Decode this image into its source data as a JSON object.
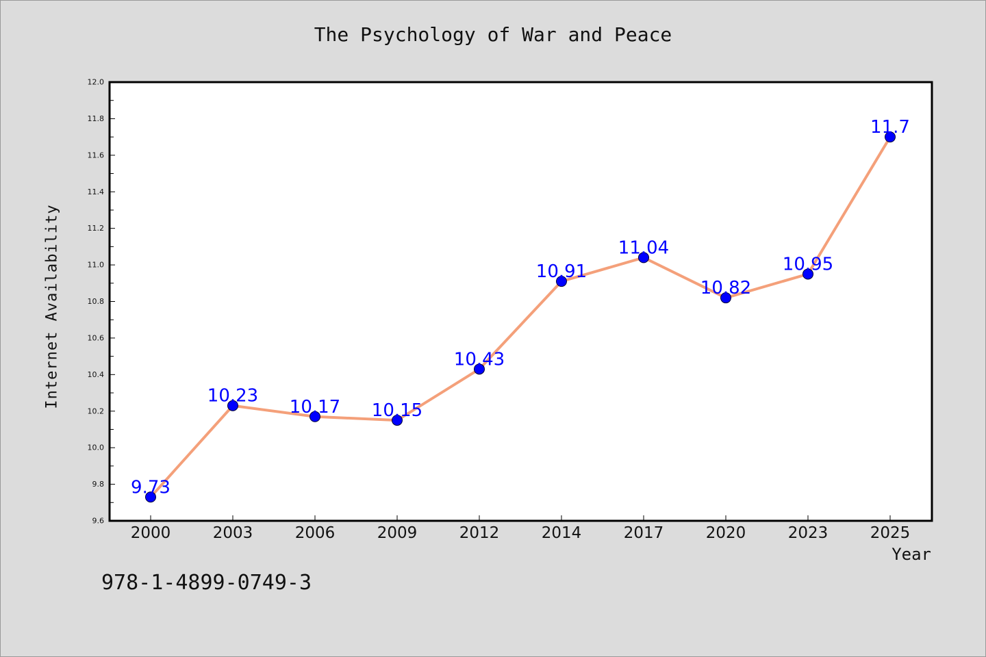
{
  "chart_data": {
    "type": "line",
    "title": "The Psychology of War and Peace",
    "xlabel": "Year",
    "ylabel": "Internet Availability",
    "categories": [
      "2000",
      "2003",
      "2006",
      "2009",
      "2012",
      "2014",
      "2017",
      "2020",
      "2023",
      "2025"
    ],
    "series": [
      {
        "values": [
          9.73,
          10.23,
          10.17,
          10.15,
          10.43,
          10.91,
          11.04,
          10.82,
          10.95,
          11.7
        ],
        "labels": [
          "9.73",
          "10.23",
          "10.17",
          "10.15",
          "10.43",
          "10.91",
          "11.04",
          "10.82",
          "10.95",
          "11.7"
        ]
      }
    ],
    "ylim": [
      9.6,
      12.0
    ],
    "yticks": [
      "9.6",
      "9.8",
      "10.0",
      "10.2",
      "10.4",
      "10.6",
      "10.8",
      "11.0",
      "11.2",
      "11.4",
      "11.6",
      "11.8",
      "12.0"
    ],
    "grid": false,
    "legend": "none",
    "colors": {
      "line": "#f4a07a",
      "marker": "#0000ff",
      "data_label": "#0000ff",
      "plot_background": "#ffffff",
      "figure_background": "#dcdcdc"
    }
  },
  "footer": {
    "isbn": "978-1-4899-0749-3"
  }
}
